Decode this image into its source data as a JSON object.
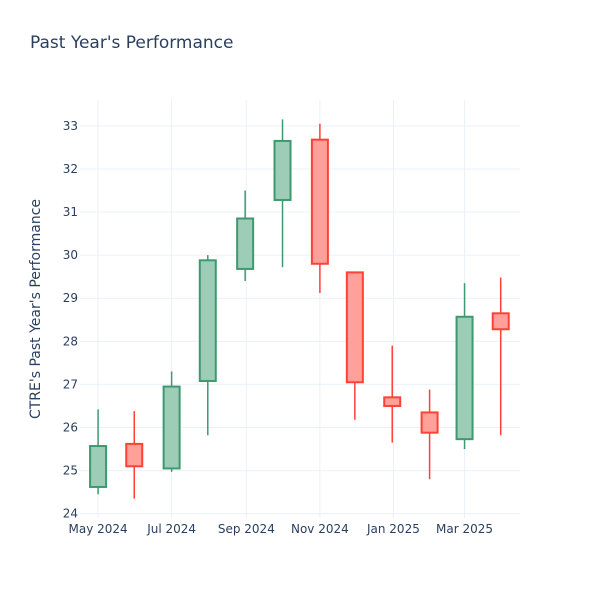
{
  "chart_data": {
    "type": "candlestick",
    "title": "Past Year's Performance",
    "xlabel": "",
    "ylabel": "CTRE's Past Year's Performance",
    "ylim": [
      23.9,
      33.6
    ],
    "yticks": [
      24,
      25,
      26,
      27,
      28,
      29,
      30,
      31,
      32,
      33
    ],
    "xticks": [
      {
        "label": "May 2024",
        "date": "2024-05-01"
      },
      {
        "label": "Jul 2024",
        "date": "2024-07-01"
      },
      {
        "label": "Sep 2024",
        "date": "2024-09-01"
      },
      {
        "label": "Nov 2024",
        "date": "2024-11-01"
      },
      {
        "label": "Jan 2025",
        "date": "2025-01-01"
      },
      {
        "label": "Mar 2025",
        "date": "2025-03-01"
      }
    ],
    "xlim": [
      "2024-04-16",
      "2025-04-16"
    ],
    "grid": true,
    "colors": {
      "up_line": "#3d9970",
      "up_fill": "#9ecdb7",
      "down_line": "#ff4136",
      "down_fill": "#ffa09b"
    },
    "candles": [
      {
        "date": "2024-05-01",
        "open": 24.62,
        "high": 26.42,
        "low": 24.45,
        "close": 25.57
      },
      {
        "date": "2024-05-31",
        "open": 25.62,
        "high": 26.38,
        "low": 24.35,
        "close": 25.1
      },
      {
        "date": "2024-07-01",
        "open": 25.05,
        "high": 27.3,
        "low": 24.97,
        "close": 26.95
      },
      {
        "date": "2024-07-31",
        "open": 27.08,
        "high": 30.0,
        "low": 25.82,
        "close": 29.88
      },
      {
        "date": "2024-08-31",
        "open": 29.68,
        "high": 31.5,
        "low": 29.4,
        "close": 30.85
      },
      {
        "date": "2024-10-01",
        "open": 31.28,
        "high": 33.15,
        "low": 29.72,
        "close": 32.65
      },
      {
        "date": "2024-11-01",
        "open": 32.68,
        "high": 33.05,
        "low": 29.12,
        "close": 29.8
      },
      {
        "date": "2024-11-30",
        "open": 29.6,
        "high": 29.6,
        "low": 26.18,
        "close": 27.05
      },
      {
        "date": "2024-12-31",
        "open": 26.7,
        "high": 27.9,
        "low": 25.65,
        "close": 26.5
      },
      {
        "date": "2025-01-31",
        "open": 26.35,
        "high": 26.88,
        "low": 24.8,
        "close": 25.88
      },
      {
        "date": "2025-03-01",
        "open": 25.73,
        "high": 29.35,
        "low": 25.5,
        "close": 28.57
      },
      {
        "date": "2025-03-31",
        "open": 28.65,
        "high": 29.48,
        "low": 25.82,
        "close": 28.28
      }
    ]
  }
}
